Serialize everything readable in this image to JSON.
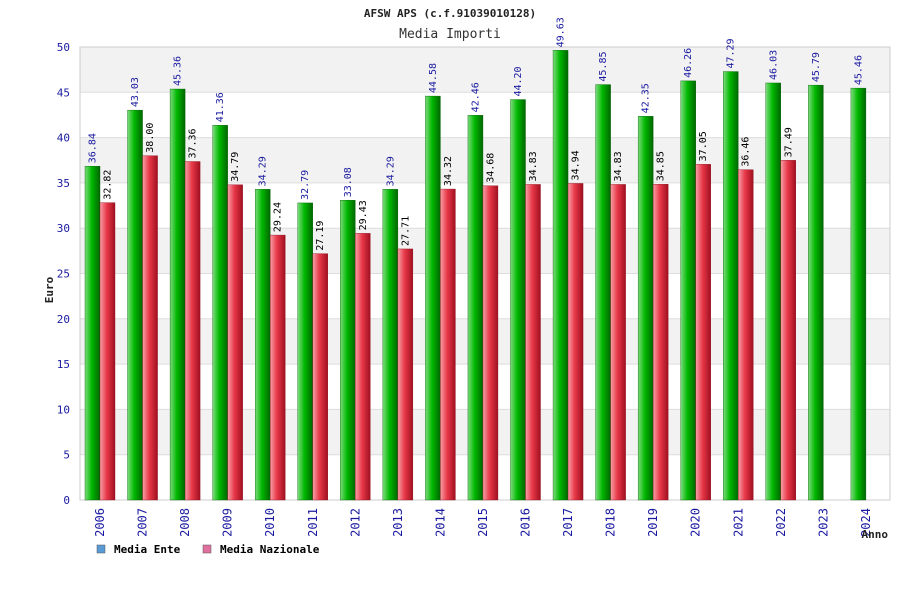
{
  "colors": {
    "ente_bar": "#00b800",
    "nazionale_bar": "#e83848",
    "ente_legend": "#5b9bd5",
    "nazionale_legend": "#e070a0",
    "band": "#f2f2f2",
    "axis_text": "#1a1aa0"
  },
  "chart_data": {
    "type": "bar",
    "title": "AFSW APS (c.f.91039010128)",
    "subtitle": "Media Importi",
    "xlabel": "Anno",
    "ylabel": "Euro",
    "ylim": [
      0,
      50
    ],
    "yticks": [
      0,
      5,
      10,
      15,
      20,
      25,
      30,
      35,
      40,
      45,
      50
    ],
    "legend_position": "bottom-left",
    "categories": [
      "2006",
      "2007",
      "2008",
      "2009",
      "2010",
      "2011",
      "2012",
      "2013",
      "2014",
      "2015",
      "2016",
      "2017",
      "2018",
      "2019",
      "2020",
      "2021",
      "2022",
      "2023",
      "2024"
    ],
    "series": [
      {
        "name": "Media Ente",
        "values": [
          36.84,
          43.03,
          45.36,
          41.36,
          34.29,
          32.79,
          33.08,
          34.29,
          44.58,
          42.46,
          44.2,
          49.63,
          45.85,
          42.35,
          46.26,
          47.29,
          46.03,
          45.79,
          45.46
        ],
        "labels": [
          "36.84",
          "43.03",
          "45.36",
          "41.36",
          "34.29",
          "32.79",
          "33.08",
          "34.29",
          "44.58",
          "42.46",
          "44.20",
          "49.63",
          "45.85",
          "42.35",
          "46.26",
          "47.29",
          "46.03",
          "45.79",
          "45.46"
        ]
      },
      {
        "name": "Media Nazionale",
        "values": [
          32.82,
          38.0,
          37.36,
          34.79,
          29.24,
          27.19,
          29.43,
          27.71,
          34.32,
          34.68,
          34.83,
          34.94,
          34.83,
          34.85,
          37.05,
          36.46,
          37.49,
          null,
          null
        ],
        "labels": [
          "32.82",
          "38.00",
          "37.36",
          "34.79",
          "29.24",
          "27.19",
          "29.43",
          "27.71",
          "34.32",
          "34.68",
          "34.83",
          "34.94",
          "34.83",
          "34.85",
          "37.05",
          "36.46",
          "37.49",
          null,
          null
        ]
      }
    ]
  }
}
